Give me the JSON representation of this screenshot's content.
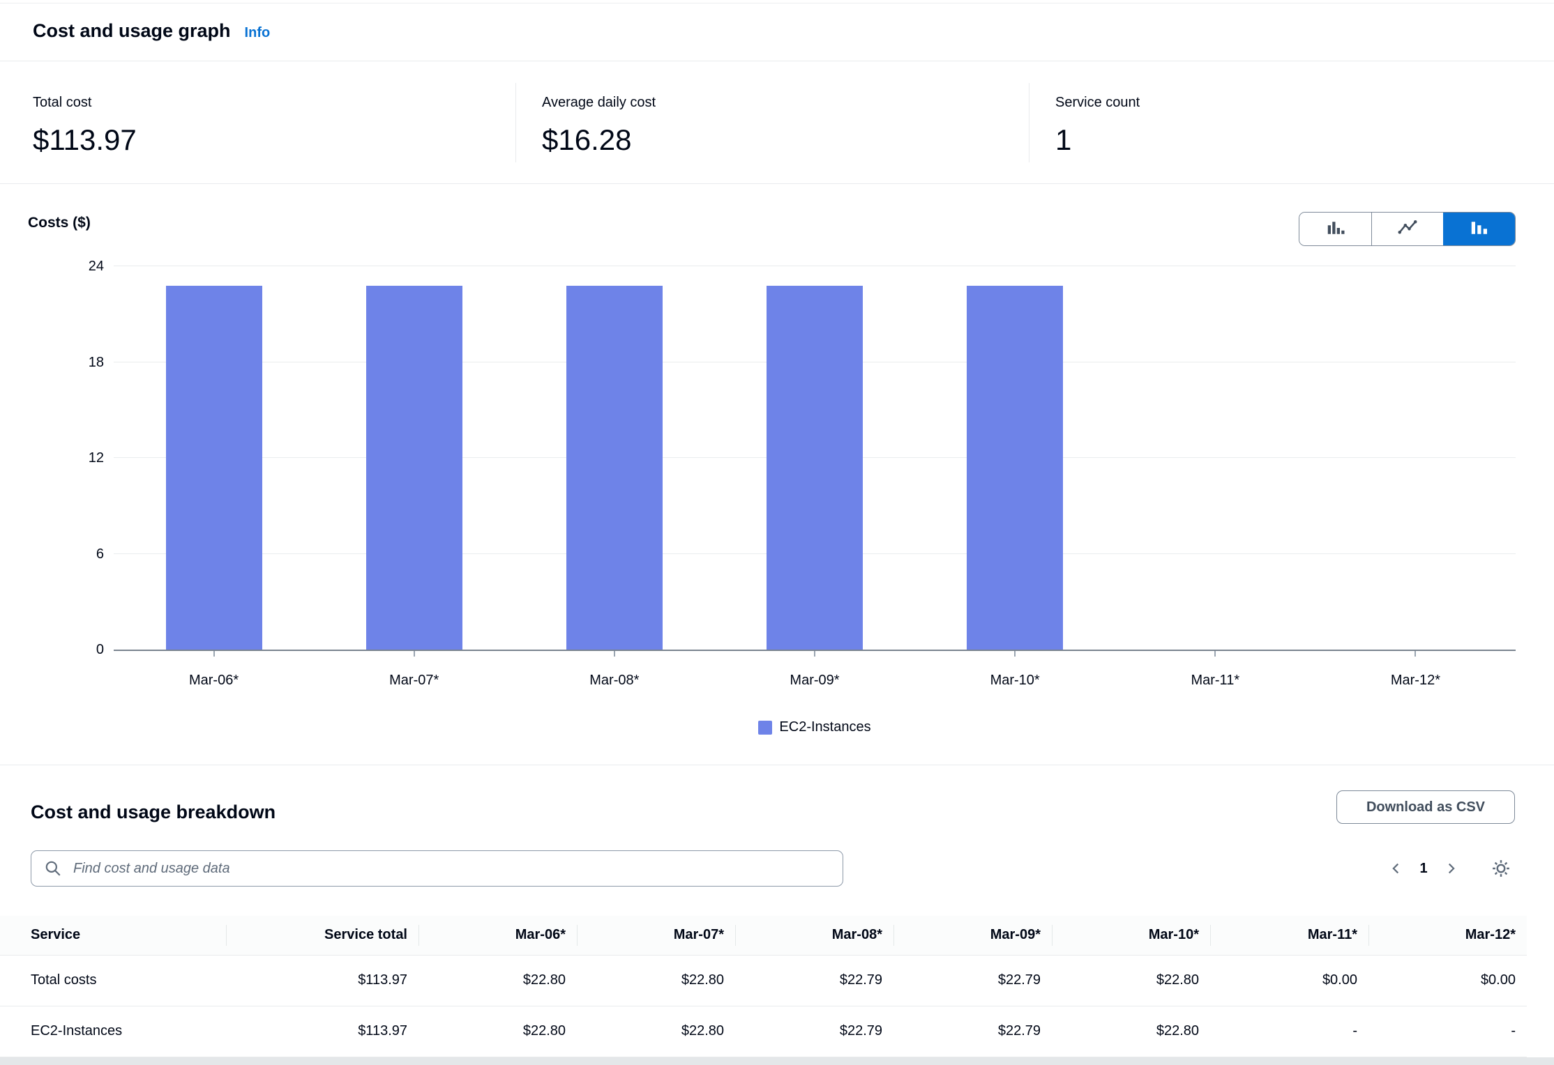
{
  "header": {
    "title": "Cost and usage graph",
    "info_label": "Info"
  },
  "stats": [
    {
      "label": "Total cost",
      "value": "$113.97"
    },
    {
      "label": "Average daily cost",
      "value": "$16.28"
    },
    {
      "label": "Service count",
      "value": "1"
    }
  ],
  "chart_data": {
    "type": "bar",
    "ylabel": "Costs ($)",
    "categories": [
      "Mar-06*",
      "Mar-07*",
      "Mar-08*",
      "Mar-09*",
      "Mar-10*",
      "Mar-11*",
      "Mar-12*"
    ],
    "series": [
      {
        "name": "EC2-Instances",
        "values": [
          22.8,
          22.8,
          22.79,
          22.79,
          22.8,
          0,
          0
        ]
      }
    ],
    "ylim": [
      0,
      24
    ],
    "yticks": [
      0,
      6,
      12,
      18,
      24
    ],
    "grid": true,
    "legend_position": "bottom",
    "bar_color": "#6e83e8",
    "chart_type_options": [
      "grouped-bar",
      "line",
      "stacked-bar"
    ],
    "selected_chart_type": "stacked-bar"
  },
  "breakdown": {
    "title": "Cost and usage breakdown",
    "download_label": "Download as CSV",
    "search_placeholder": "Find cost and usage data",
    "pagination": {
      "current_page": "1"
    },
    "table": {
      "columns": [
        "Service",
        "Service total",
        "Mar-06*",
        "Mar-07*",
        "Mar-08*",
        "Mar-09*",
        "Mar-10*",
        "Mar-11*",
        "Mar-12*"
      ],
      "rows": [
        [
          "Total costs",
          "$113.97",
          "$22.80",
          "$22.80",
          "$22.79",
          "$22.79",
          "$22.80",
          "$0.00",
          "$0.00"
        ],
        [
          "EC2-Instances",
          "$113.97",
          "$22.80",
          "$22.80",
          "$22.79",
          "$22.79",
          "$22.80",
          "-",
          "-"
        ]
      ]
    }
  },
  "colors": {
    "accent_blue": "#0972d3",
    "bar_blue": "#6e83e8"
  }
}
